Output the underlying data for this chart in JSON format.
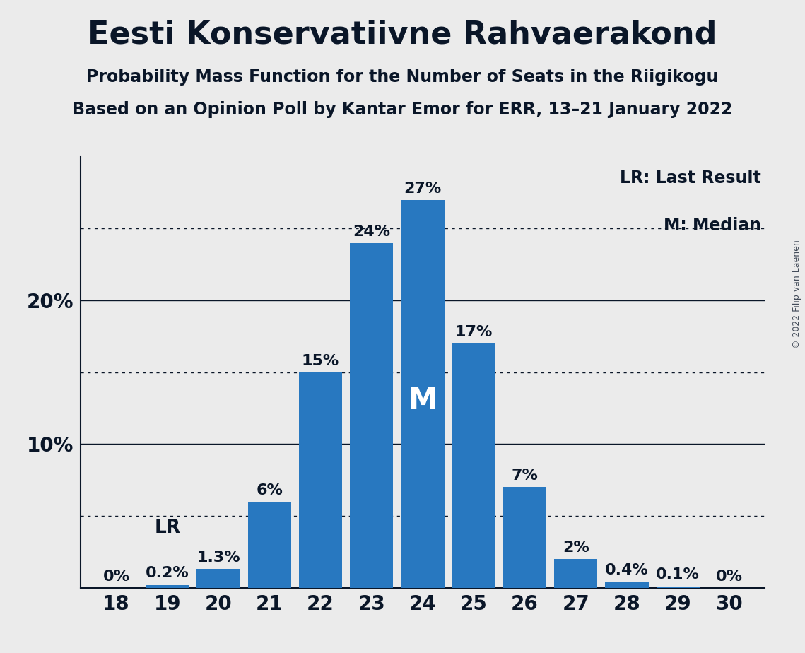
{
  "title": "Eesti Konservatiivne Rahvaerakond",
  "subtitle1": "Probability Mass Function for the Number of Seats in the Riigikogu",
  "subtitle2": "Based on an Opinion Poll by Kantar Emor for ERR, 13–21 January 2022",
  "copyright": "© 2022 Filip van Laenen",
  "seats": [
    18,
    19,
    20,
    21,
    22,
    23,
    24,
    25,
    26,
    27,
    28,
    29,
    30
  ],
  "probabilities": [
    0.0,
    0.2,
    1.3,
    6.0,
    15.0,
    24.0,
    27.0,
    17.0,
    7.0,
    2.0,
    0.4,
    0.1,
    0.0
  ],
  "bar_color": "#2878C0",
  "background_color": "#ebebeb",
  "text_color": "#0a1628",
  "lr_seat": 19,
  "median_seat": 24,
  "ylim": [
    0,
    30
  ],
  "yticks": [
    10,
    20
  ],
  "dotted_lines": [
    5,
    15,
    25
  ],
  "solid_lines": [
    10,
    20
  ],
  "legend_lr": "LR: Last Result",
  "legend_m": "M: Median",
  "title_fontsize": 32,
  "subtitle_fontsize": 17,
  "tick_fontsize": 20,
  "ytick_fontsize": 20,
  "bar_label_fontsize": 16,
  "legend_fontsize": 17,
  "lr_label_fontsize": 19,
  "m_label_fontsize": 30
}
